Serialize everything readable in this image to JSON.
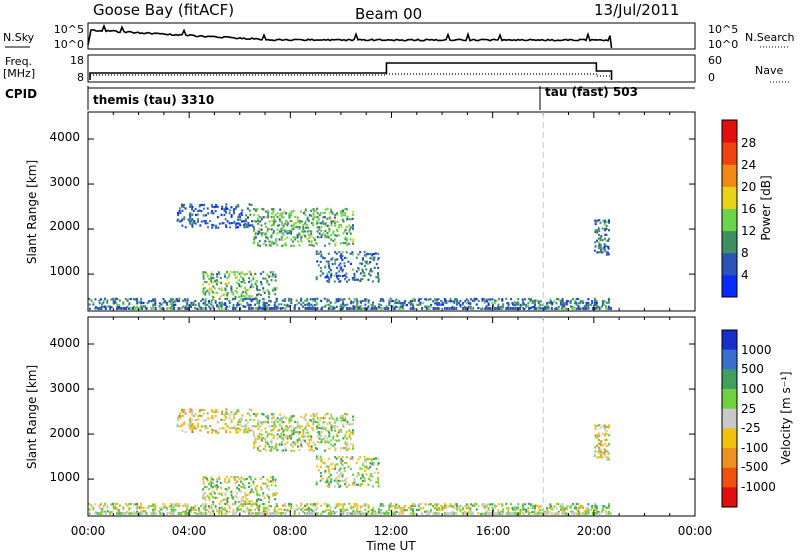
{
  "header": {
    "station": "Goose Bay (fitACF)",
    "beam": "Beam 00",
    "date": "13/Jul/2011"
  },
  "nsky_panel": {
    "left_label": "N.Sky",
    "left_ticks": [
      "10^5",
      "10^0"
    ],
    "right_ticks": [
      "10^5",
      "10^0"
    ],
    "right_label": "N.Search"
  },
  "freq_panel": {
    "left_label_1": "Freq.",
    "left_label_2": "[MHz]",
    "left_ticks": [
      "18",
      "8"
    ],
    "right_ticks": [
      "60",
      "0"
    ],
    "right_label": "Nave"
  },
  "cpid": {
    "label": "CPID",
    "modes": [
      {
        "name": "themis (tau) 3310",
        "start_hour": 0
      },
      {
        "name": "tau (fast) 503",
        "start_hour": 18
      }
    ]
  },
  "x_axis": {
    "label": "Time UT",
    "ticks": [
      "00:00",
      "04:00",
      "08:00",
      "12:00",
      "16:00",
      "20:00",
      "00:00"
    ],
    "range_hours": [
      0,
      24
    ],
    "data_end_hour": 20.7
  },
  "y_axis": {
    "label": "Slant Range [km]",
    "ticks": [
      "1000",
      "2000",
      "3000",
      "4000"
    ],
    "range_km": [
      180,
      4600
    ]
  },
  "power_colorbar": {
    "label": "Power [dB]",
    "ticks": [
      "4",
      "8",
      "12",
      "16",
      "20",
      "24",
      "28"
    ],
    "colors": [
      "#0a2bff",
      "#2a52b8",
      "#3f8f62",
      "#6cd44a",
      "#e8d21a",
      "#f08a14",
      "#f04410",
      "#e01010"
    ]
  },
  "velocity_colorbar": {
    "label": "Velocity [m s⁻¹]",
    "ticks": [
      "1000",
      "500",
      "100",
      "25",
      "-25",
      "-100",
      "-500",
      "-1000"
    ],
    "colors": [
      "#1a2fc8",
      "#3a6fd0",
      "#3fa060",
      "#70d040",
      "#c8c8c8",
      "#f0c010",
      "#f09020",
      "#f05010",
      "#e01010"
    ]
  },
  "chart_data": {
    "type": "heatmap",
    "title": "Goose Bay (fitACF) Beam 00 13/Jul/2011",
    "xlabel": "Time UT",
    "ylabel": "Slant Range [km]",
    "xlim_hours": [
      0,
      24
    ],
    "ylim_km": [
      180,
      4600
    ],
    "panels": [
      "Power [dB]",
      "Velocity [m s⁻¹]"
    ],
    "echo_regions": [
      {
        "t0": 0.0,
        "t1": 20.6,
        "r0": 200,
        "r1": 450,
        "density": 0.45,
        "power_db": 8,
        "velocity": 25
      },
      {
        "t0": 3.5,
        "t1": 6.5,
        "r0": 2000,
        "r1": 2550,
        "density": 0.35,
        "power_db": 6,
        "velocity": -25
      },
      {
        "t0": 6.5,
        "t1": 10.5,
        "r0": 1600,
        "r1": 2450,
        "density": 0.35,
        "power_db": 12,
        "velocity": 25
      },
      {
        "t0": 9.0,
        "t1": 11.5,
        "r0": 800,
        "r1": 1500,
        "density": 0.3,
        "power_db": 8,
        "velocity": 25
      },
      {
        "t0": 4.5,
        "t1": 7.5,
        "r0": 420,
        "r1": 1050,
        "density": 0.35,
        "power_db": 12,
        "velocity": 25
      },
      {
        "t0": 20.0,
        "t1": 20.6,
        "r0": 1400,
        "r1": 2200,
        "density": 0.45,
        "power_db": 8,
        "velocity": -25
      }
    ]
  }
}
